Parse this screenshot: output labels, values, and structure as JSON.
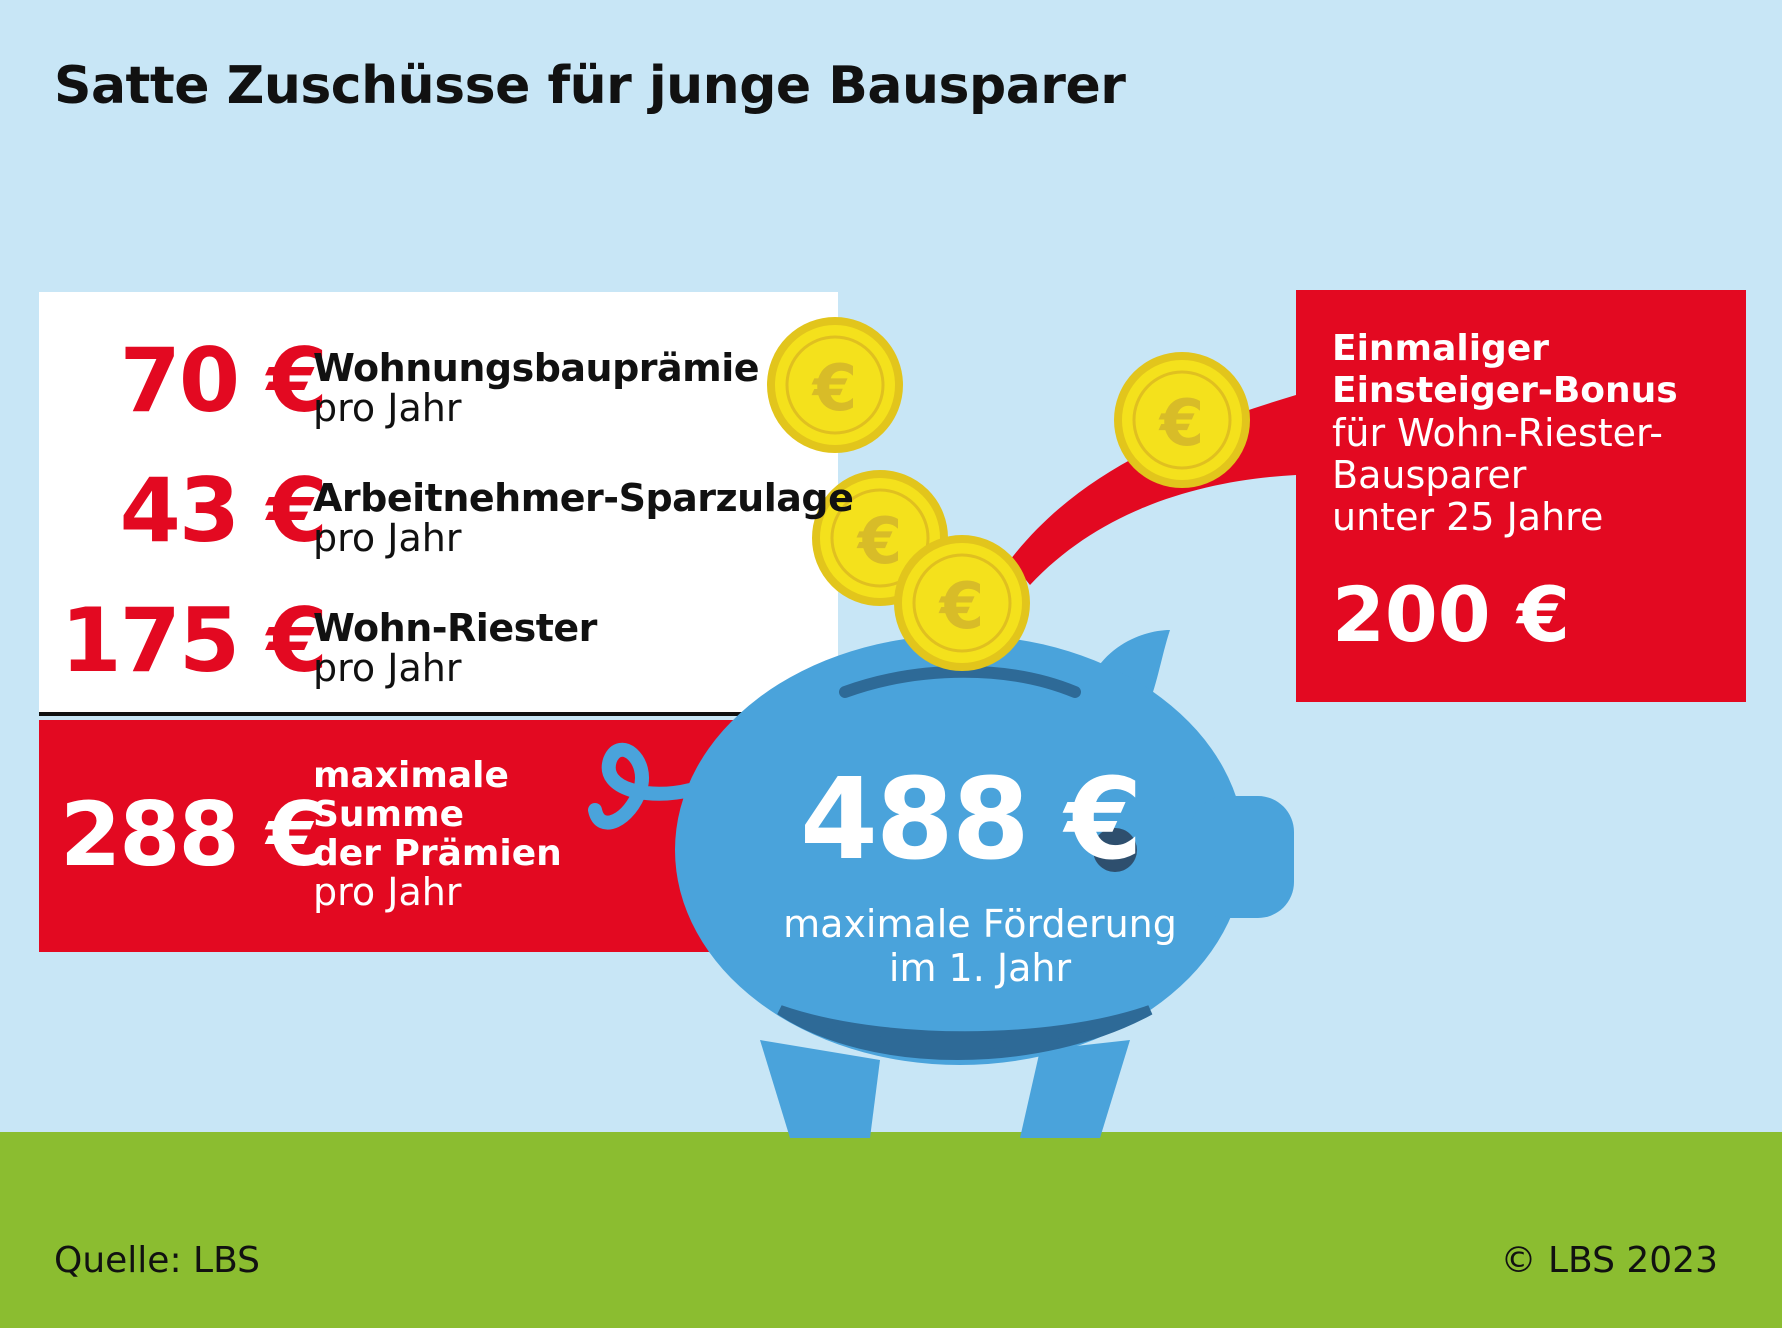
{
  "title": "Satte Zuschüsse für junge Bausparer",
  "rows": [
    {
      "amount": "70 €",
      "label": "Wohnungsbauprämie",
      "sub": "pro Jahr"
    },
    {
      "amount": "43 €",
      "label": "Arbeitnehmer-Sparzulage",
      "sub": "pro Jahr"
    },
    {
      "amount": "175 €",
      "label": "Wohn-Riester",
      "sub": "pro Jahr"
    }
  ],
  "sum": {
    "amount": "288 €",
    "label_line1": "maximale",
    "label_line2": "Summe",
    "label_line3": "der Prämien",
    "sub": "pro Jahr"
  },
  "bonus": {
    "title_line1": "Einmaliger",
    "title_line2": "Einsteiger-Bonus",
    "text_line1": "für Wohn-Riester-",
    "text_line2": "Bausparer",
    "text_line3": "unter 25 Jahre",
    "amount": "200 €"
  },
  "total": {
    "amount": "488 €",
    "text_line1": "maximale Förderung",
    "text_line2": "im 1. Jahr"
  },
  "source": "Quelle: LBS",
  "copyright": "© LBS 2023",
  "colors": {
    "sky": "#c8e6f6",
    "red": "#e30921",
    "grass": "#8bbd30",
    "pig": "#4aa3db",
    "pig_dark": "#2e6a97",
    "coin": "#f4e11c",
    "coin_edge": "#e2c51c"
  },
  "icons": [
    "piggy-bank-icon",
    "euro-coin-icon"
  ]
}
